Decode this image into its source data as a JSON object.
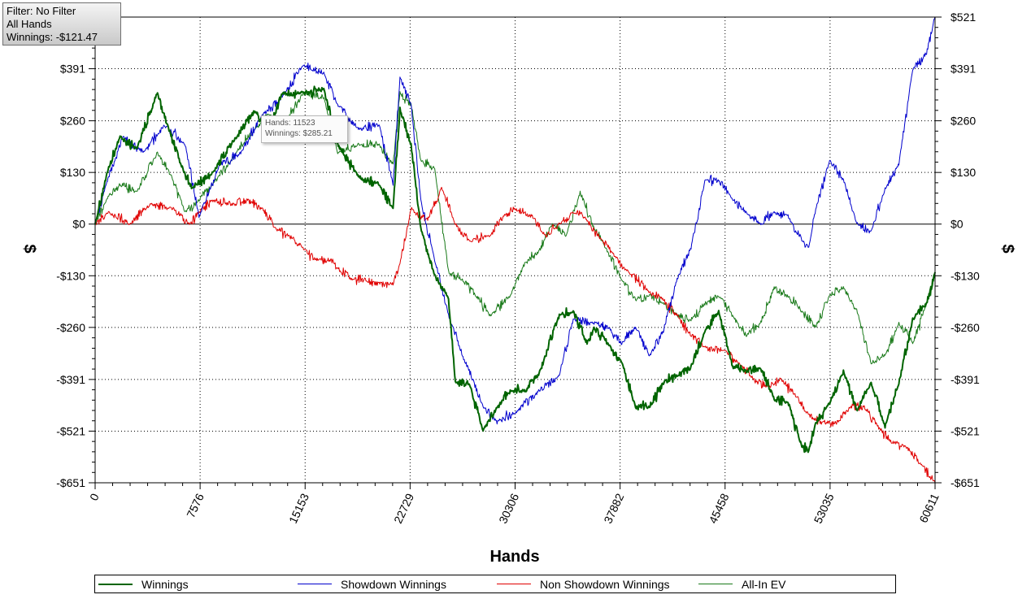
{
  "info_box": {
    "filter": "Filter: No Filter",
    "hands": "All Hands",
    "winnings": "Winnings: -$121.47"
  },
  "tooltip": {
    "hands": "Hands: 11523",
    "winnings": "Winnings: $285.21"
  },
  "chart_data": {
    "type": "line",
    "title": "",
    "xlabel": "Hands",
    "ylabel": "$",
    "xlim": [
      0,
      60611
    ],
    "ylim": [
      -651,
      521
    ],
    "x_ticks": [
      0,
      7576,
      15153,
      22729,
      30306,
      37882,
      45458,
      53035,
      60611
    ],
    "x_tick_labels": [
      "0",
      "7576",
      "15153",
      "22729",
      "30306",
      "37882",
      "45458",
      "53035",
      "60611"
    ],
    "y_ticks": [
      521,
      391,
      260,
      130,
      0,
      -130,
      -260,
      -391,
      -521,
      -651
    ],
    "y_tick_labels": [
      "$521",
      "$391",
      "$260",
      "$130",
      "$0",
      "-$130",
      "-$260",
      "-$391",
      "-$521",
      "-$651"
    ],
    "grid": true,
    "legend_position": "bottom",
    "series": [
      {
        "name": "Winnings",
        "color": "#006400",
        "width": 2,
        "x": [
          0,
          800,
          1800,
          3000,
          4500,
          5200,
          6200,
          7000,
          8500,
          10000,
          11523,
          12500,
          13500,
          15000,
          16500,
          17500,
          19000,
          20500,
          21500,
          22000,
          22800,
          23500,
          24500,
          25500,
          26000,
          27000,
          28000,
          29000,
          30000,
          31000,
          32000,
          33500,
          34500,
          35500,
          36000,
          37000,
          38000,
          39000,
          40000,
          41000,
          42000,
          43000,
          44000,
          45000,
          46000,
          47000,
          48000,
          49000,
          50000,
          51000,
          51500,
          52000,
          53000,
          54000,
          55000,
          56000,
          57000,
          58000,
          59000,
          60000,
          60611
        ],
        "y": [
          0,
          120,
          220,
          190,
          330,
          250,
          150,
          90,
          130,
          210,
          285,
          230,
          330,
          330,
          340,
          200,
          120,
          100,
          40,
          290,
          200,
          -10,
          -130,
          -190,
          -400,
          -400,
          -520,
          -460,
          -420,
          -420,
          -380,
          -230,
          -220,
          -300,
          -260,
          -300,
          -350,
          -460,
          -460,
          -400,
          -380,
          -360,
          -270,
          -220,
          -360,
          -370,
          -360,
          -440,
          -450,
          -560,
          -570,
          -500,
          -450,
          -370,
          -470,
          -400,
          -510,
          -400,
          -240,
          -200,
          -121
        ]
      },
      {
        "name": "Showdown Winnings",
        "color": "#0000cd",
        "width": 1,
        "x": [
          0,
          800,
          2000,
          3500,
          5000,
          6500,
          7500,
          9000,
          10500,
          12000,
          13500,
          15000,
          16500,
          17500,
          19000,
          20500,
          21500,
          22000,
          22800,
          23500,
          24500,
          25500,
          26500,
          28000,
          29000,
          30500,
          32000,
          33500,
          34500,
          36000,
          37000,
          38000,
          39000,
          40000,
          41000,
          42000,
          43000,
          44000,
          45000,
          46000,
          47000,
          48000,
          49000,
          50000,
          51000,
          51500,
          52000,
          53000,
          54000,
          55000,
          56000,
          57000,
          58000,
          59000,
          60000,
          60611
        ],
        "y": [
          0,
          100,
          220,
          180,
          250,
          200,
          20,
          150,
          180,
          270,
          320,
          400,
          380,
          300,
          240,
          250,
          100,
          370,
          300,
          60,
          -90,
          -230,
          -330,
          -460,
          -500,
          -470,
          -420,
          -380,
          -240,
          -250,
          -260,
          -300,
          -260,
          -330,
          -270,
          -140,
          -60,
          110,
          110,
          60,
          30,
          0,
          30,
          20,
          -40,
          -60,
          40,
          160,
          110,
          0,
          -20,
          90,
          150,
          390,
          430,
          521
        ]
      },
      {
        "name": "Non Showdown Winnings",
        "color": "#e00000",
        "width": 1,
        "x": [
          0,
          1000,
          2500,
          4000,
          5500,
          6800,
          7500,
          8500,
          10000,
          11000,
          12000,
          13000,
          14000,
          15000,
          16000,
          17000,
          17500,
          18500,
          19500,
          20500,
          21500,
          22000,
          22800,
          24000,
          25000,
          26000,
          27000,
          28500,
          29500,
          30306,
          31500,
          32500,
          33500,
          34500,
          35500,
          36500,
          37500,
          38500,
          40000,
          41000,
          42000,
          43000,
          44000,
          45500,
          46500,
          47500,
          48500,
          49500,
          50500,
          51500,
          52500,
          53500,
          54500,
          55500,
          56500,
          57500,
          58500,
          59500,
          60611
        ],
        "y": [
          0,
          30,
          0,
          50,
          40,
          0,
          30,
          60,
          50,
          60,
          40,
          -10,
          -30,
          -60,
          -90,
          -90,
          -110,
          -140,
          -140,
          -150,
          -150,
          -100,
          40,
          10,
          90,
          0,
          -40,
          -30,
          20,
          40,
          20,
          -30,
          0,
          30,
          10,
          -40,
          -80,
          -120,
          -170,
          -190,
          -230,
          -280,
          -310,
          -320,
          -350,
          -390,
          -410,
          -390,
          -430,
          -480,
          -500,
          -500,
          -460,
          -460,
          -510,
          -550,
          -560,
          -600,
          -651
        ]
      },
      {
        "name": "All-In EV",
        "color": "#1a7a1a",
        "width": 1,
        "x": [
          0,
          800,
          1800,
          3000,
          4500,
          5500,
          6500,
          7500,
          8500,
          10000,
          11523,
          12500,
          13500,
          15000,
          16500,
          17500,
          19000,
          20500,
          21500,
          22000,
          22800,
          23500,
          24500,
          25500,
          26500,
          27500,
          28500,
          30000,
          31000,
          32000,
          33000,
          34000,
          35000,
          36000,
          37000,
          38000,
          39000,
          40000,
          41000,
          42000,
          43000,
          44000,
          45000,
          46000,
          47000,
          48000,
          49000,
          50000,
          51000,
          52000,
          53000,
          54000,
          55000,
          56000,
          57000,
          58000,
          59000,
          60000,
          60611
        ],
        "y": [
          0,
          60,
          100,
          80,
          180,
          120,
          30,
          60,
          100,
          170,
          240,
          280,
          240,
          330,
          320,
          180,
          200,
          200,
          150,
          330,
          300,
          160,
          140,
          -120,
          -140,
          -180,
          -230,
          -180,
          -100,
          -70,
          0,
          -30,
          80,
          -10,
          -70,
          -140,
          -190,
          -180,
          -200,
          -230,
          -240,
          -200,
          -180,
          -230,
          -280,
          -250,
          -160,
          -180,
          -220,
          -260,
          -180,
          -160,
          -220,
          -350,
          -330,
          -250,
          -300,
          -200,
          -130
        ]
      }
    ]
  },
  "legend": {
    "items": [
      {
        "label": "Winnings",
        "color": "#006400"
      },
      {
        "label": "Showdown Winnings",
        "color": "#0000cd"
      },
      {
        "label": "Non Showdown Winnings",
        "color": "#e00000"
      },
      {
        "label": "All-In EV",
        "color": "#1a7a1a"
      }
    ]
  }
}
